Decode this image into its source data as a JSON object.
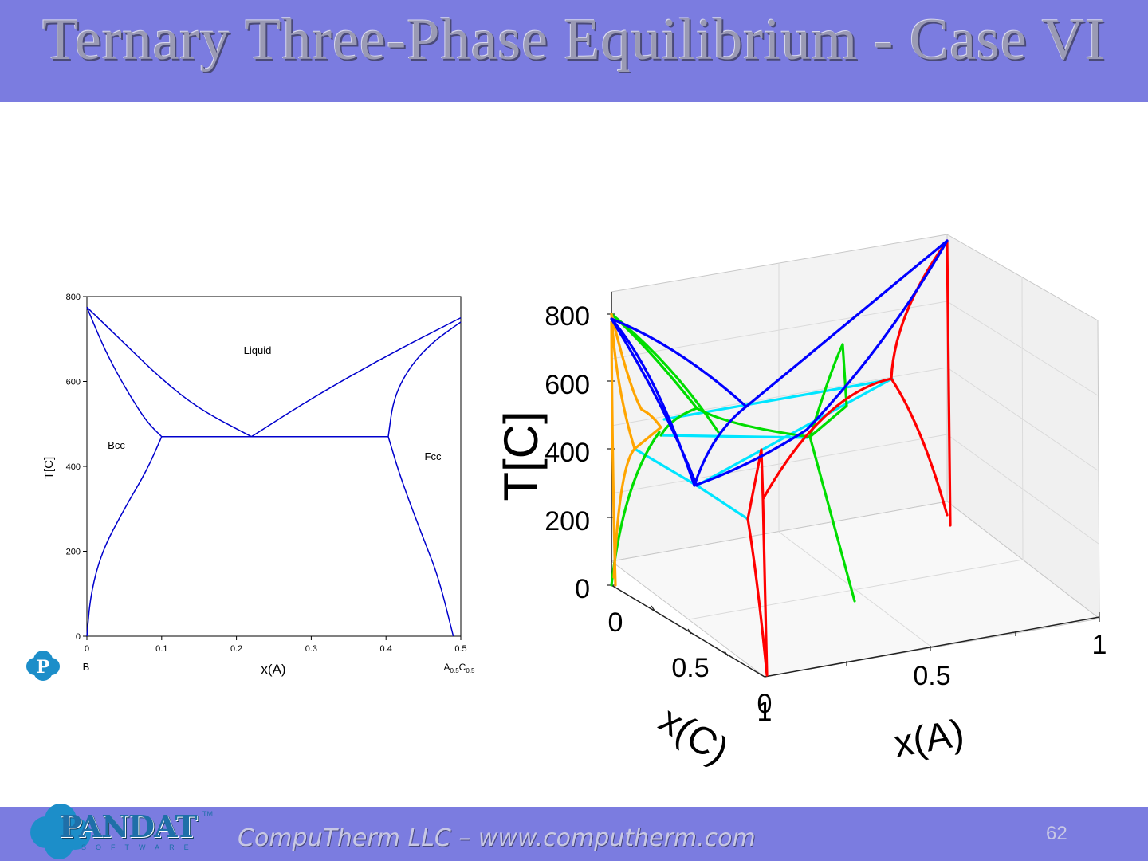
{
  "slide": {
    "title": "Ternary Three-Phase Equilibrium - Case VI",
    "footer": "CompuTherm LLC – www.computherm.com",
    "page_number": "62",
    "logo": {
      "word": "PANDAT",
      "sub": "SOFTWARE",
      "tm": "TM"
    }
  },
  "chart_data": [
    {
      "type": "line",
      "title": "",
      "xlabel": "x(A)",
      "ylabel": "T[C]",
      "xlim": [
        0,
        0.5
      ],
      "ylim": [
        0,
        800
      ],
      "xticks": [
        "0",
        "0.1",
        "0.2",
        "0.3",
        "0.4",
        "0.5"
      ],
      "yticks": [
        "0",
        "200",
        "400",
        "600",
        "800"
      ],
      "x_end_labels": {
        "left": "B",
        "right_base": "A",
        "right_sub1": "0.5",
        "right_mid": "C",
        "right_sub2": "0.5"
      },
      "region_labels": [
        "Liquid",
        "Bcc",
        "Fcc"
      ],
      "color": "#0000cc",
      "series": [
        {
          "x": [
            0,
            0.02,
            0.04,
            0.06,
            0.08,
            0.1
          ],
          "y": [
            775,
            690,
            620,
            560,
            505,
            470
          ]
        },
        {
          "x": [
            0,
            0.05,
            0.1,
            0.15,
            0.22
          ],
          "y": [
            775,
            690,
            605,
            535,
            470
          ]
        },
        {
          "x": [
            0.22,
            0.3,
            0.4,
            0.5
          ],
          "y": [
            470,
            560,
            660,
            750
          ]
        },
        {
          "x": [
            0.1,
            0.403
          ],
          "y": [
            470,
            470
          ]
        },
        {
          "x": [
            0.403,
            0.41,
            0.43,
            0.46,
            0.5
          ],
          "y": [
            470,
            560,
            630,
            690,
            740
          ]
        },
        {
          "x": [
            0,
            0.005,
            0.02,
            0.05,
            0.08,
            0.1
          ],
          "y": [
            0,
            100,
            200,
            300,
            390,
            470
          ]
        },
        {
          "x": [
            0.403,
            0.42,
            0.45,
            0.47,
            0.49
          ],
          "y": [
            470,
            370,
            230,
            140,
            0
          ]
        }
      ]
    },
    {
      "type": "line",
      "title": "",
      "xlabel": "x(A)",
      "ylabel": "T[C]",
      "zlabel": "x(C)",
      "zlim": [
        0,
        800
      ],
      "ticks_T": [
        "0",
        "200",
        "400",
        "600",
        "800"
      ],
      "ticks_xA": [
        "0",
        "0.5",
        "1"
      ],
      "ticks_xC": [
        "0",
        "0.5",
        "1"
      ],
      "series_colors": [
        "#0000ff",
        "#00dd00",
        "#00e5ff",
        "#ff0000",
        "#ffa500"
      ]
    }
  ]
}
